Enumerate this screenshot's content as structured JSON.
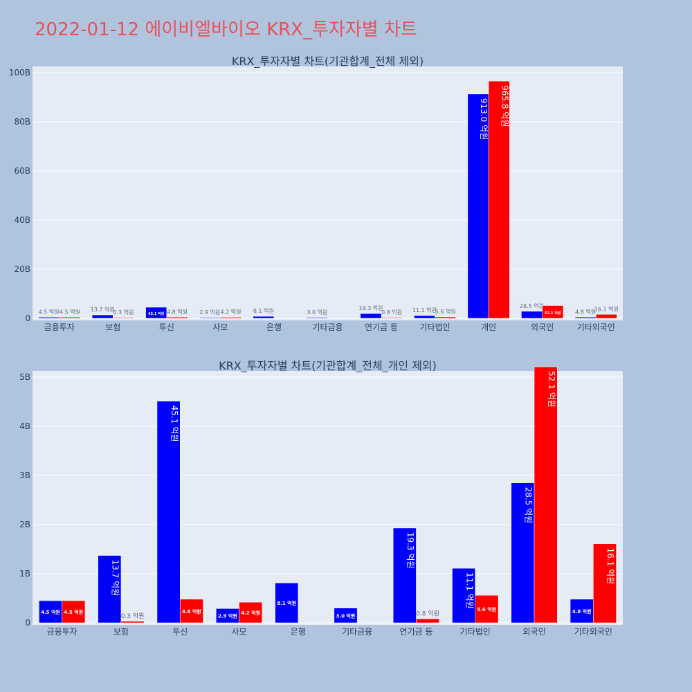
{
  "page_title": "2022-01-12 에이비엘바이오 KRX_투자자별 차트",
  "colors": {
    "buy": "#0000ff",
    "sell": "#ff0000",
    "plot_bg": "#e5ecf6",
    "page_bg": "#b0c4de",
    "title": "#e8505b"
  },
  "chart_data": [
    {
      "type": "bar",
      "title": "KRX_투자자별 차트(기관합계_전체 제외)",
      "categories": [
        "금융투자",
        "보험",
        "투신",
        "사모",
        "은행",
        "기타금융",
        "연기금 등",
        "기타법인",
        "개인",
        "외국인",
        "기타외국인"
      ],
      "series": [
        {
          "color": "blue",
          "values": [
            0.45,
            1.37,
            4.51,
            0.29,
            0.81,
            0.3,
            1.93,
            1.11,
            91.3,
            2.85,
            0.48
          ],
          "labels": [
            "4.5 억원",
            "13.7 억원",
            "45.1 억원",
            "2.9 억원",
            "8.1 억원",
            "3.0 억원",
            "19.3 억원",
            "11.1 억원",
            "913.0 억원",
            "28.5 억원",
            "4.8 억원"
          ]
        },
        {
          "color": "red",
          "values": [
            0.45,
            0.03,
            0.48,
            0.42,
            null,
            null,
            0.08,
            0.56,
            96.58,
            5.21,
            1.61
          ],
          "labels": [
            "4.5 억원",
            "0.3 억원",
            "4.8 억원",
            "4.2 억원",
            "",
            "",
            "0.8 억원",
            "5.6 억원",
            "965.8 억원",
            "52.1 억원",
            "16.1 억원"
          ]
        }
      ],
      "yticks": [
        "0",
        "20B",
        "40B",
        "60B",
        "80B",
        "100B"
      ],
      "ytick_values": [
        0,
        20,
        40,
        60,
        80,
        100
      ],
      "ylim": [
        0,
        100
      ],
      "unit": "B",
      "grid": true,
      "legend": "none"
    },
    {
      "type": "bar",
      "title": "KRX_투자자별 차트(기관합계_전체_개인 제외)",
      "categories": [
        "금융투자",
        "보험",
        "투신",
        "사모",
        "은행",
        "기타금융",
        "연기금 등",
        "기타법인",
        "외국인",
        "기타외국인"
      ],
      "series": [
        {
          "color": "blue",
          "values": [
            0.45,
            1.37,
            4.51,
            0.29,
            0.81,
            0.3,
            1.93,
            1.11,
            2.85,
            0.48
          ],
          "labels": [
            "4.5 억원",
            "13.7 억원",
            "45.1 억원",
            "2.9 억원",
            "8.1 억원",
            "3.0 억원",
            "19.3 억원",
            "11.1 억원",
            "28.5 억원",
            "4.8 억원"
          ]
        },
        {
          "color": "red",
          "values": [
            0.45,
            0.03,
            0.48,
            0.42,
            null,
            null,
            0.08,
            0.56,
            5.21,
            1.61
          ],
          "labels": [
            "4.5 억원",
            "0.3 억원",
            "4.8 억원",
            "4.2 억원",
            "",
            "",
            "0.8 억원",
            "5.6 억원",
            "52.1 억원",
            "16.1 억원"
          ]
        }
      ],
      "yticks": [
        "0",
        "1B",
        "2B",
        "3B",
        "4B",
        "5B"
      ],
      "ytick_values": [
        0,
        1,
        2,
        3,
        4,
        5
      ],
      "ylim": [
        0,
        5.5
      ],
      "unit": "B",
      "grid": true,
      "legend": "none"
    }
  ]
}
